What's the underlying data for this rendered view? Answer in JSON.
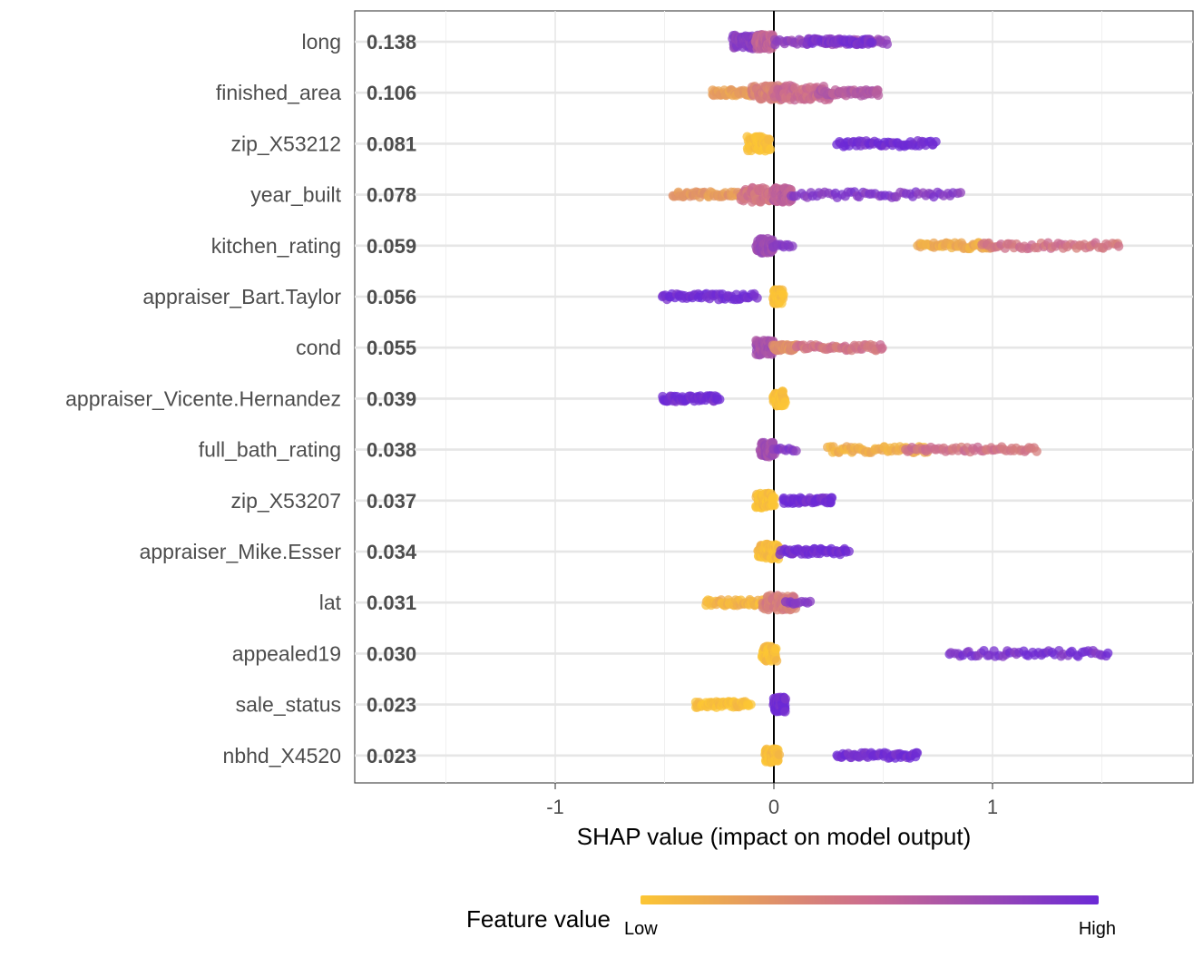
{
  "chart_data": {
    "type": "scatter",
    "subtype": "shap-beeswarm-summary",
    "title": "",
    "xlabel": "SHAP value (impact on model output)",
    "ylabel": "",
    "xlim": [
      -1.8,
      1.8
    ],
    "x_ticks": [
      {
        "value": -1,
        "label": "-1"
      },
      {
        "value": 0,
        "label": "0"
      },
      {
        "value": 1,
        "label": "1"
      }
    ],
    "grid": true,
    "zero_line": true,
    "legend": {
      "title": "Feature value",
      "low_label": "Low",
      "high_label": "High",
      "low_color": "#fcc634",
      "mid_color": "#cb6b8f",
      "high_color": "#6b29d6",
      "placement": "bottom"
    },
    "features": [
      {
        "name": "long",
        "importance": "0.138",
        "segments": [
          {
            "from": -0.19,
            "to": -0.07,
            "color_value": 0.85,
            "density": "high"
          },
          {
            "from": -0.08,
            "to": 0.0,
            "color_value": 0.55,
            "density": "high"
          },
          {
            "from": 0.0,
            "to": 0.52,
            "color_value": 0.78,
            "density": "medium"
          },
          {
            "from": 0.15,
            "to": 0.45,
            "color_value": 0.92,
            "density": "medium"
          }
        ]
      },
      {
        "name": "finished_area",
        "importance": "0.106",
        "segments": [
          {
            "from": -0.28,
            "to": -0.05,
            "color_value": 0.22,
            "density": "medium"
          },
          {
            "from": -0.1,
            "to": 0.05,
            "color_value": 0.38,
            "density": "high"
          },
          {
            "from": 0.0,
            "to": 0.25,
            "color_value": 0.5,
            "density": "high"
          },
          {
            "from": 0.2,
            "to": 0.48,
            "color_value": 0.62,
            "density": "medium"
          }
        ]
      },
      {
        "name": "zip_X53212",
        "importance": "0.081",
        "segments": [
          {
            "from": -0.12,
            "to": -0.02,
            "color_value": 0.02,
            "density": "high"
          },
          {
            "from": 0.29,
            "to": 0.74,
            "color_value": 0.97,
            "density": "medium"
          }
        ]
      },
      {
        "name": "year_built",
        "importance": "0.078",
        "segments": [
          {
            "from": -0.46,
            "to": -0.1,
            "color_value": 0.25,
            "density": "medium"
          },
          {
            "from": -0.15,
            "to": 0.05,
            "color_value": 0.45,
            "density": "high"
          },
          {
            "from": 0.0,
            "to": 0.08,
            "color_value": 0.58,
            "density": "high"
          },
          {
            "from": 0.08,
            "to": 0.85,
            "color_value": 0.88,
            "density": "medium"
          }
        ]
      },
      {
        "name": "kitchen_rating",
        "importance": "0.059",
        "segments": [
          {
            "from": -0.08,
            "to": 0.0,
            "color_value": 0.75,
            "density": "high"
          },
          {
            "from": 0.0,
            "to": 0.08,
            "color_value": 0.9,
            "density": "low"
          },
          {
            "from": 0.66,
            "to": 1.0,
            "color_value": 0.15,
            "density": "medium"
          },
          {
            "from": 0.95,
            "to": 1.58,
            "color_value": 0.45,
            "density": "medium"
          }
        ]
      },
      {
        "name": "appraiser_Bart.Taylor",
        "importance": "0.056",
        "segments": [
          {
            "from": -0.51,
            "to": -0.08,
            "color_value": 0.97,
            "density": "medium"
          },
          {
            "from": 0.0,
            "to": 0.04,
            "color_value": 0.02,
            "density": "high"
          }
        ]
      },
      {
        "name": "cond",
        "importance": "0.055",
        "segments": [
          {
            "from": -0.08,
            "to": 0.0,
            "color_value": 0.7,
            "density": "high"
          },
          {
            "from": 0.0,
            "to": 0.1,
            "color_value": 0.3,
            "density": "medium"
          },
          {
            "from": 0.1,
            "to": 0.5,
            "color_value": 0.45,
            "density": "medium"
          }
        ]
      },
      {
        "name": "appraiser_Vicente.Hernandez",
        "importance": "0.039",
        "segments": [
          {
            "from": -0.51,
            "to": -0.25,
            "color_value": 0.97,
            "density": "medium"
          },
          {
            "from": 0.0,
            "to": 0.05,
            "color_value": 0.02,
            "density": "high"
          }
        ]
      },
      {
        "name": "full_bath_rating",
        "importance": "0.038",
        "segments": [
          {
            "from": -0.06,
            "to": 0.0,
            "color_value": 0.72,
            "density": "high"
          },
          {
            "from": 0.0,
            "to": 0.1,
            "color_value": 0.88,
            "density": "low"
          },
          {
            "from": 0.25,
            "to": 0.7,
            "color_value": 0.12,
            "density": "medium"
          },
          {
            "from": 0.6,
            "to": 1.2,
            "color_value": 0.45,
            "density": "medium"
          }
        ]
      },
      {
        "name": "zip_X53207",
        "importance": "0.037",
        "segments": [
          {
            "from": -0.08,
            "to": 0.0,
            "color_value": 0.03,
            "density": "high"
          },
          {
            "from": 0.04,
            "to": 0.27,
            "color_value": 0.97,
            "density": "medium"
          }
        ]
      },
      {
        "name": "appraiser_Mike.Esser",
        "importance": "0.034",
        "segments": [
          {
            "from": -0.07,
            "to": 0.02,
            "color_value": 0.05,
            "density": "high"
          },
          {
            "from": 0.03,
            "to": 0.34,
            "color_value": 0.97,
            "density": "medium"
          }
        ]
      },
      {
        "name": "lat",
        "importance": "0.031",
        "segments": [
          {
            "from": -0.31,
            "to": -0.02,
            "color_value": 0.1,
            "density": "medium"
          },
          {
            "from": -0.05,
            "to": 0.1,
            "color_value": 0.4,
            "density": "high"
          },
          {
            "from": 0.05,
            "to": 0.17,
            "color_value": 0.85,
            "density": "low"
          }
        ]
      },
      {
        "name": "appealed19",
        "importance": "0.030",
        "segments": [
          {
            "from": -0.05,
            "to": 0.01,
            "color_value": 0.04,
            "density": "high"
          },
          {
            "from": 0.8,
            "to": 1.53,
            "color_value": 0.92,
            "density": "medium"
          }
        ]
      },
      {
        "name": "sale_status",
        "importance": "0.023",
        "segments": [
          {
            "from": -0.36,
            "to": -0.11,
            "color_value": 0.03,
            "density": "medium"
          },
          {
            "from": 0.0,
            "to": 0.05,
            "color_value": 0.98,
            "density": "high"
          }
        ]
      },
      {
        "name": "nbhd_X4520",
        "importance": "0.023",
        "segments": [
          {
            "from": -0.04,
            "to": 0.02,
            "color_value": 0.04,
            "density": "high"
          },
          {
            "from": 0.29,
            "to": 0.66,
            "color_value": 0.96,
            "density": "medium"
          }
        ]
      }
    ]
  }
}
